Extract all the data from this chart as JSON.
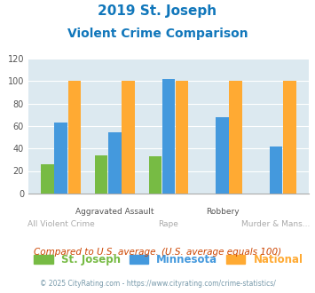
{
  "title_line1": "2019 St. Joseph",
  "title_line2": "Violent Crime Comparison",
  "categories": [
    "All Violent Crime",
    "Aggravated Assault",
    "Rape",
    "Robbery",
    "Murder & Mans..."
  ],
  "st_joseph": [
    26,
    34,
    33,
    0,
    0
  ],
  "minnesota": [
    63,
    54,
    102,
    68,
    42
  ],
  "national": [
    100,
    100,
    100,
    100,
    100
  ],
  "colors": {
    "st_joseph": "#77bb44",
    "minnesota": "#4499dd",
    "national": "#ffaa33"
  },
  "ylim": [
    0,
    120
  ],
  "yticks": [
    0,
    20,
    40,
    60,
    80,
    100,
    120
  ],
  "title_color": "#1177bb",
  "bg_color": "#dce9f0",
  "legend_labels": [
    "St. Joseph",
    "Minnesota",
    "National"
  ],
  "footnote1": "Compared to U.S. average. (U.S. average equals 100)",
  "footnote2": "© 2025 CityRating.com - https://www.cityrating.com/crime-statistics/",
  "footnote1_color": "#cc4400",
  "footnote2_color": "#7799aa",
  "xlabel_top_color": "#555555",
  "xlabel_bot_color": "#aaaaaa"
}
